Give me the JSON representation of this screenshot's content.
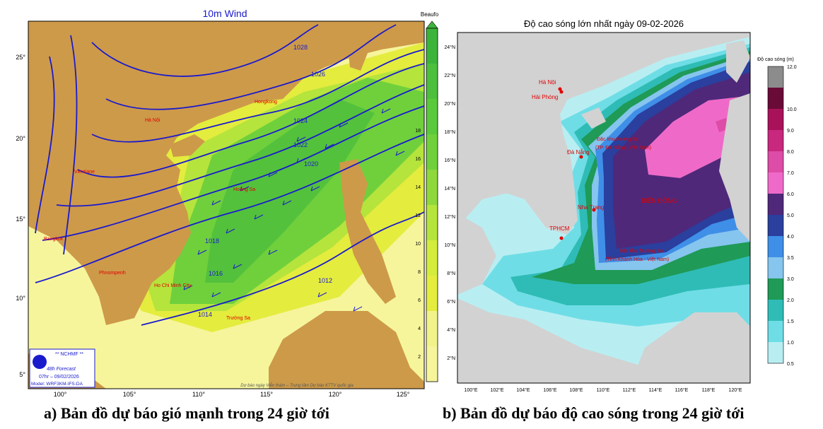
{
  "left_map": {
    "title": "10m Wind",
    "colorbar_title": "Beaufort",
    "colorbar_ticks": [
      "2",
      "4",
      "6",
      "8",
      "10",
      "12",
      "14",
      "16",
      "18"
    ],
    "lat_labels": [
      "25°",
      "20°",
      "15°",
      "10°",
      "5°"
    ],
    "lon_labels": [
      "100°",
      "105°",
      "110°",
      "115°",
      "120°",
      "125°"
    ],
    "isobars": [
      "1014",
      "1016",
      "1018",
      "1020",
      "1022",
      "1024",
      "1026",
      "1028",
      "1012"
    ],
    "places": [
      "Hongkong",
      "Hà Nội",
      "Vientiane",
      "Hoàng Sa",
      "Bangkok",
      "Phnompenh",
      "Ho Chi Minh City",
      "Trường Sa"
    ],
    "logo_text": "** NCHMF **",
    "forecast_lines": [
      "48h Forecast",
      "07hr – 09/02/2026",
      "Model: WRF3KM-IFS-DA"
    ],
    "credit": "Dự báo ngày Viễn thám – Trung tâm Dự báo KTTV quốc gia",
    "colors": {
      "ocean_light": "#f6f59c",
      "ocean_yellow": "#e4ec3e",
      "ocean_lime": "#b5e43c",
      "ocean_green": "#6fd03c",
      "ocean_dark": "#3cb43c",
      "land": "#cd9a49",
      "isobar": "#1a1acd"
    }
  },
  "right_map": {
    "title": "Độ cao sóng lớn nhất ngày 09-02-2026",
    "colorbar_title": "Độ cao sóng (m)",
    "colorbar_levels": [
      "0.5",
      "1.0",
      "1.5",
      "2.0",
      "3.0",
      "3.5",
      "4.0",
      "5.0",
      "6.0",
      "7.0",
      "8.0",
      "9.0",
      "10.0",
      "12.0"
    ],
    "lat_labels": [
      "24°N",
      "22°N",
      "20°N",
      "18°N",
      "16°N",
      "14°N",
      "12°N",
      "10°N",
      "8°N",
      "6°N",
      "4°N",
      "2°N"
    ],
    "lon_labels": [
      "100°E",
      "102°E",
      "104°E",
      "106°E",
      "108°E",
      "110°E",
      "112°E",
      "114°E",
      "116°E",
      "118°E",
      "120°E"
    ],
    "places": [
      "Hà Nội",
      "Hải Phòng",
      "Đà Nẵng",
      "Nha Trang",
      "TPHCM"
    ],
    "sea_name": "BIỂN ĐÔNG",
    "archipelago_hs": [
      "Đặc khu Hoàng Sa",
      "(TP. Đà Nẵng - Việt Nam)"
    ],
    "archipelago_ts": [
      "Đặc khu Trường Sa",
      "(Tỉnh Khánh Hòa - Việt Nam)"
    ],
    "colors": {
      "land": "#d2d2d2",
      "c05": "#b8eef2",
      "c10": "#6fdde6",
      "c15": "#2fbcb6",
      "c20": "#1f9a57",
      "c30": "#86c5ee",
      "c35": "#3f8fe8",
      "c40": "#2a3f9e",
      "c50": "#4f287a",
      "c60": "#ef6ac8",
      "c70": "#dd4ca6",
      "c80": "#c8287d",
      "c90": "#a8125a",
      "c100": "#6a0a36",
      "c120": "#8c8c8c",
      "label": "#e00000"
    }
  },
  "captions": {
    "a": "a) Bản đồ dự báo gió mạnh trong 24 giờ tới",
    "b": "b) Bản đồ dự báo độ cao sóng trong 24 giờ tới"
  }
}
